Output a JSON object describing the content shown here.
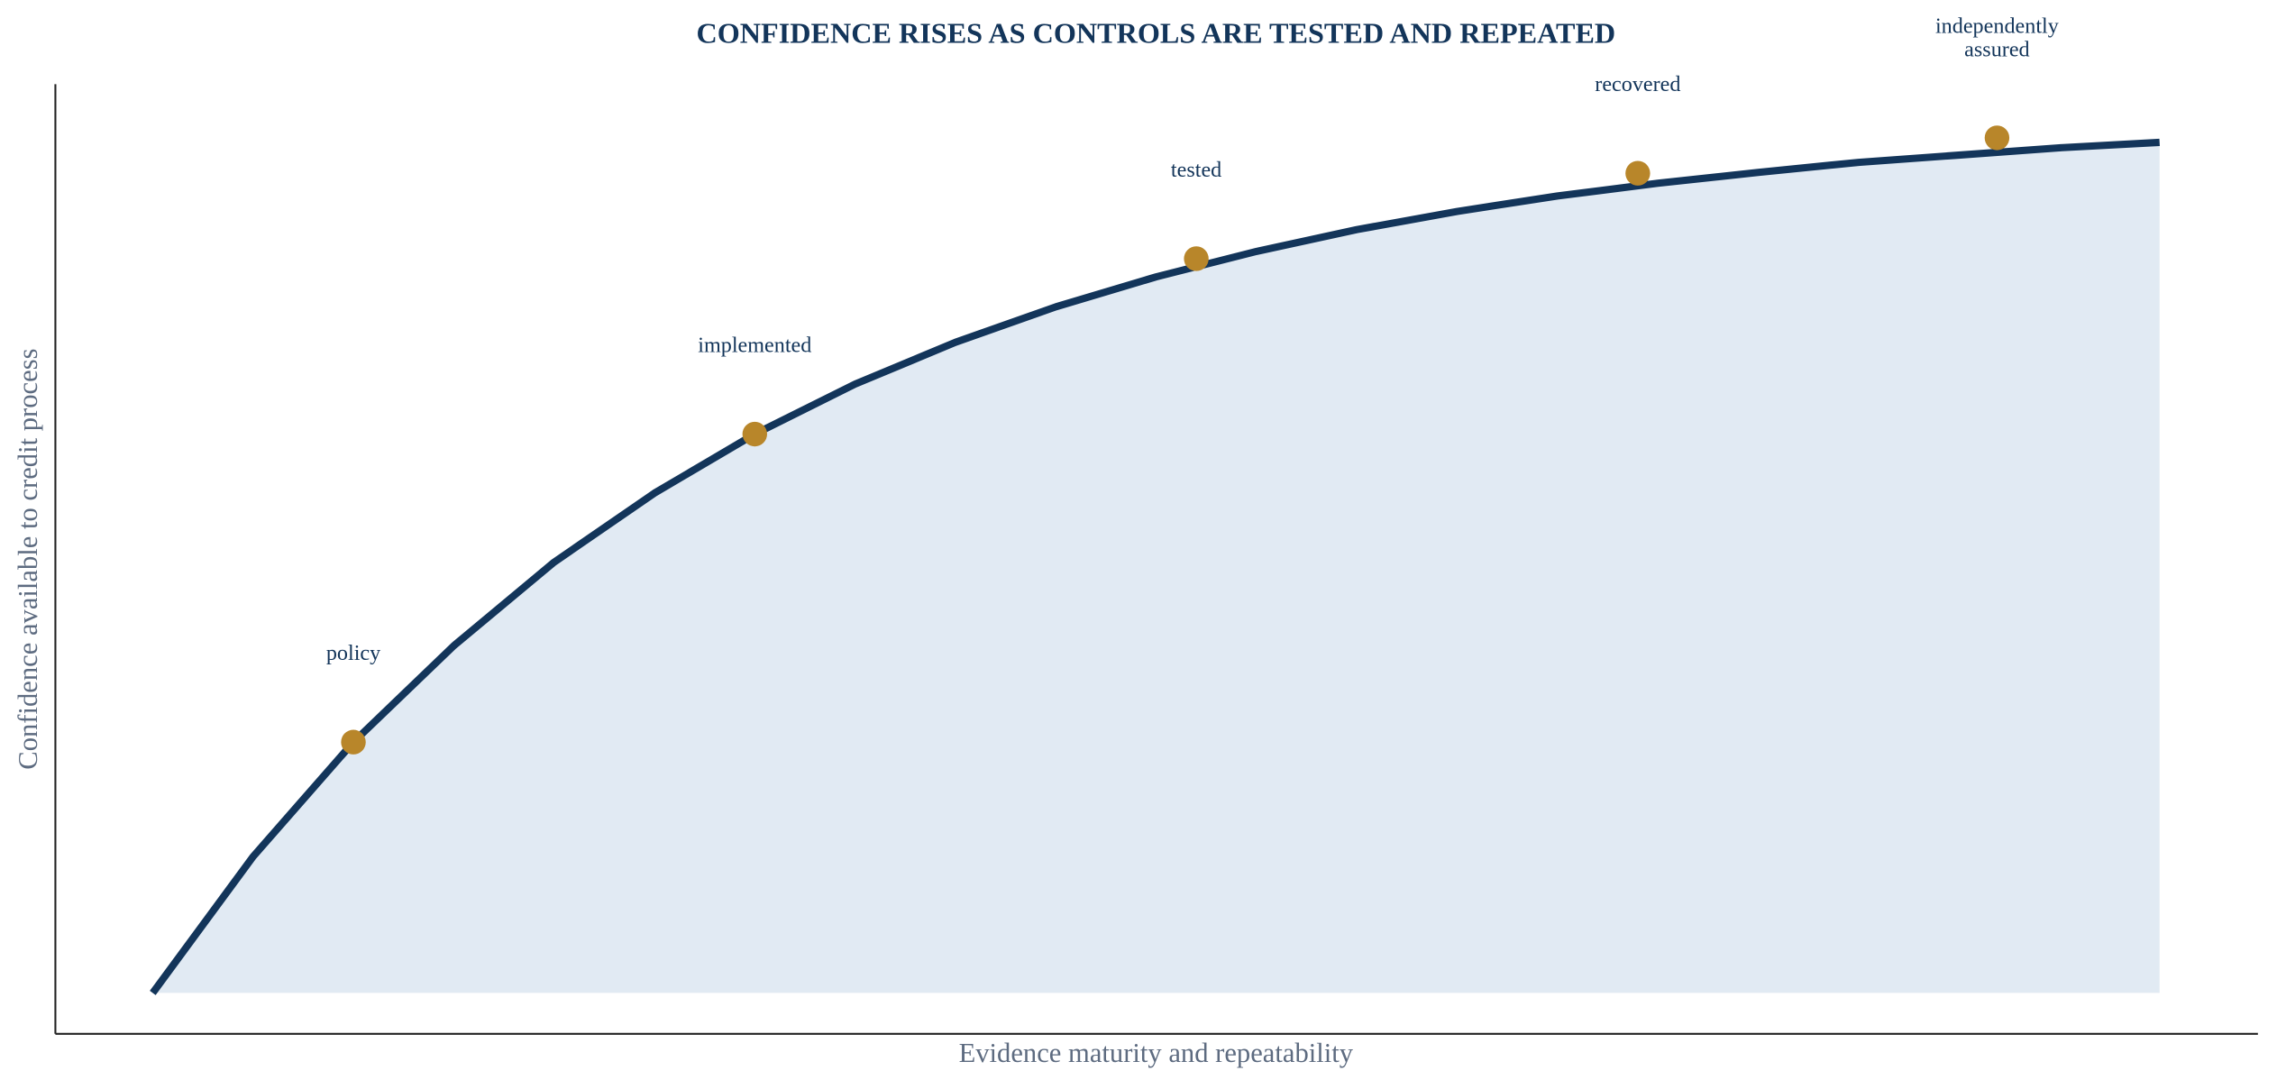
{
  "chart_data": {
    "type": "line",
    "title": "CONFIDENCE RISES AS CONTROLS ARE TESTED AND REPEATED",
    "x_label": "Evidence maturity and repeatability",
    "y_label": "Confidence available to credit process",
    "xlim": [
      -0.485,
      10.49
    ],
    "ylim": [
      -0.045,
      1.0
    ],
    "fill_area": true,
    "fill_color": "#e1eaf3",
    "series": [
      {
        "color": "#13355a",
        "x": [
          0,
          0.5,
          1,
          1.5,
          2,
          2.5,
          3,
          3.5,
          4,
          4.5,
          5,
          5.5,
          6,
          6.5,
          7,
          7.5,
          8,
          8.5,
          9,
          9.5,
          10
        ],
        "values": [
          0,
          0.15,
          0.276,
          0.382,
          0.474,
          0.55,
          0.615,
          0.67,
          0.716,
          0.755,
          0.788,
          0.816,
          0.84,
          0.86,
          0.877,
          0.891,
          0.903,
          0.914,
          0.922,
          0.93,
          0.936
        ]
      }
    ],
    "milestones": {
      "color": "#b8862a",
      "x": [
        1.0,
        3.0,
        5.2,
        7.4,
        9.19
      ],
      "values": [
        0.276,
        0.615,
        0.808,
        0.902,
        0.941
      ],
      "labels": [
        "policy",
        "implemented",
        "tested",
        "recovered",
        "independently\nassured"
      ]
    }
  }
}
